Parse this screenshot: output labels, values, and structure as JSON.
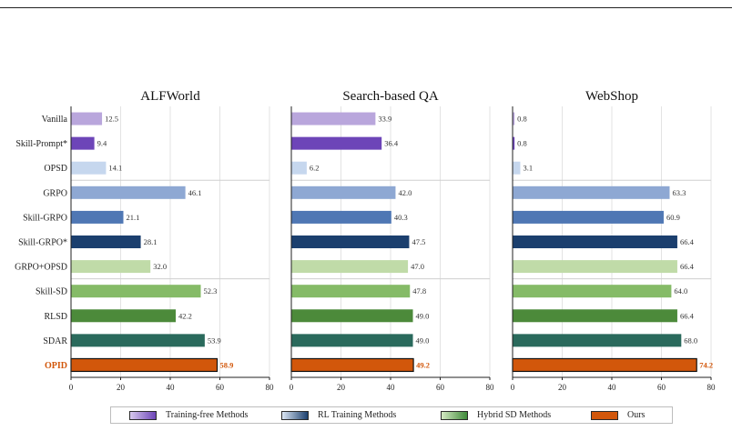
{
  "chart_data": {
    "type": "bar",
    "orientation": "horizontal",
    "categories": [
      "Vanilla",
      "Skill-Prompt*",
      "OPSD",
      "GRPO",
      "Skill-GRPO",
      "Skill-GRPO*",
      "GRPO+OPSD",
      "Skill-SD",
      "RLSD",
      "SDAR",
      "OPID"
    ],
    "category_groups": [
      "Training-free Methods",
      "Training-free Methods",
      "RL Training Methods",
      "RL Training Methods",
      "RL Training Methods",
      "RL Training Methods",
      "Hybrid SD Methods",
      "Hybrid SD Methods",
      "Hybrid SD Methods",
      "Hybrid SD Methods",
      "Ours"
    ],
    "bar_colors": [
      "#b9a6dc",
      "#6d45b8",
      "#c6d7ee",
      "#8ea8d3",
      "#4f77b4",
      "#1b3f6e",
      "#c0dba8",
      "#85bb67",
      "#4c8a3a",
      "#2a6a5c",
      "#d2570b"
    ],
    "highlight_color": "#d2570b",
    "xlim": [
      0,
      80
    ],
    "xticks": [
      0,
      20,
      40,
      60,
      80
    ],
    "grid": true,
    "legend_position": "bottom",
    "panels": [
      {
        "title": "ALFWorld",
        "values": [
          12.5,
          9.4,
          14.1,
          46.1,
          21.1,
          28.1,
          32.0,
          52.3,
          42.2,
          53.9,
          58.9
        ]
      },
      {
        "title": "Search-based QA",
        "values": [
          33.9,
          36.4,
          6.2,
          42.0,
          40.3,
          47.5,
          47.0,
          47.8,
          49.0,
          49.0,
          49.2
        ]
      },
      {
        "title": "WebShop",
        "values": [
          0.8,
          0.8,
          3.1,
          63.3,
          60.9,
          66.4,
          66.4,
          64.0,
          66.4,
          68.0,
          74.2
        ]
      }
    ],
    "legend": [
      {
        "label": "Training-free Methods",
        "gradient": [
          "#d6c8ec",
          "#6d45b8"
        ]
      },
      {
        "label": "RL Training Methods",
        "gradient": [
          "#dbe6f4",
          "#1b3f6e"
        ]
      },
      {
        "label": "Hybrid SD Methods",
        "gradient": [
          "#d4e9c3",
          "#3f8a3a"
        ]
      },
      {
        "label": "Ours",
        "gradient": [
          "#d2570b",
          "#d2570b"
        ]
      }
    ]
  }
}
